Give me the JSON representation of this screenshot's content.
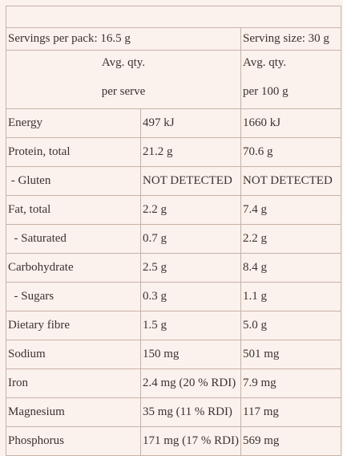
{
  "servings_per_pack": "Servings per pack: 16.5 g",
  "serving_size": "Serving size: 30 g",
  "column_headers": {
    "per_serve": [
      "Avg. qty.",
      "per serve"
    ],
    "per_100g": [
      "Avg. qty.",
      "per 100 g"
    ]
  },
  "rows": [
    [
      "Energy",
      "497 kJ",
      "1660 kJ"
    ],
    [
      "Protein, total",
      "21.2 g",
      "70.6 g"
    ],
    [
      " - Gluten",
      "NOT DETECTED",
      "NOT DETECTED"
    ],
    [
      "Fat, total",
      "2.2 g",
      "7.4 g"
    ],
    [
      "  - Saturated",
      "0.7 g",
      "2.2 g"
    ],
    [
      "Carbohydrate",
      "2.5 g",
      "8.4 g"
    ],
    [
      "  - Sugars",
      "0.3 g",
      "1.1 g"
    ],
    [
      "Dietary fibre",
      "1.5 g",
      "5.0 g"
    ],
    [
      "Sodium",
      "150 mg",
      "501 mg"
    ],
    [
      "Iron",
      "2.4 mg (20 % RDI)",
      "7.9 mg"
    ],
    [
      "Magnesium",
      "35 mg (11 % RDI)",
      "117 mg"
    ],
    [
      "Phosphorus",
      "171 mg (17 % RDI)",
      "569 mg"
    ]
  ]
}
